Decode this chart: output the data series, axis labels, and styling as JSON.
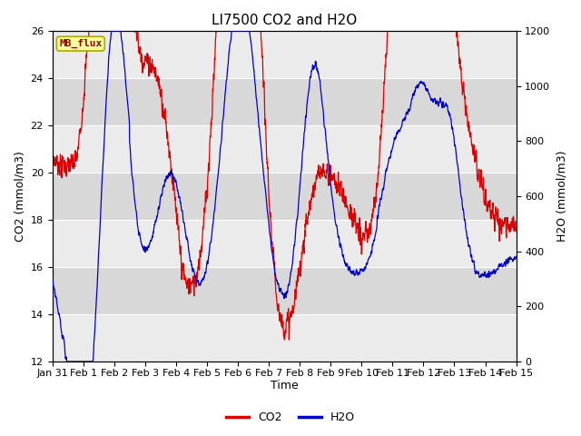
{
  "title": "LI7500 CO2 and H2O",
  "xlabel": "Time",
  "ylabel_left": "CO2 (mmol/m3)",
  "ylabel_right": "H2O (mmol/m3)",
  "ylim_left": [
    12,
    26
  ],
  "ylim_right": [
    0,
    1200
  ],
  "yticks_left": [
    12,
    14,
    16,
    18,
    20,
    22,
    24,
    26
  ],
  "yticks_right": [
    0,
    200,
    400,
    600,
    800,
    1000,
    1200
  ],
  "xtick_labels": [
    "Jan 31",
    "Feb 1",
    "Feb 2",
    "Feb 3",
    "Feb 4",
    "Feb 5",
    "Feb 6",
    "Feb 7",
    "Feb 8",
    "Feb 9",
    "Feb 10",
    "Feb 11",
    "Feb 12",
    "Feb 13",
    "Feb 14",
    "Feb 15"
  ],
  "co2_color": "#dd0000",
  "h2o_color": "#0000cc",
  "bg_color": "#ffffff",
  "plot_bg_light": "#ebebeb",
  "plot_bg_dark": "#d8d8d8",
  "legend_label_co2": "CO2",
  "legend_label_h2o": "H2O",
  "annotation_text": "MB_flux",
  "annotation_bg": "#ffff99",
  "annotation_border": "#aaaa00",
  "title_fontsize": 11,
  "axis_fontsize": 9,
  "tick_fontsize": 8,
  "legend_fontsize": 9,
  "line_width": 0.9,
  "num_points": 2160,
  "seed": 7
}
